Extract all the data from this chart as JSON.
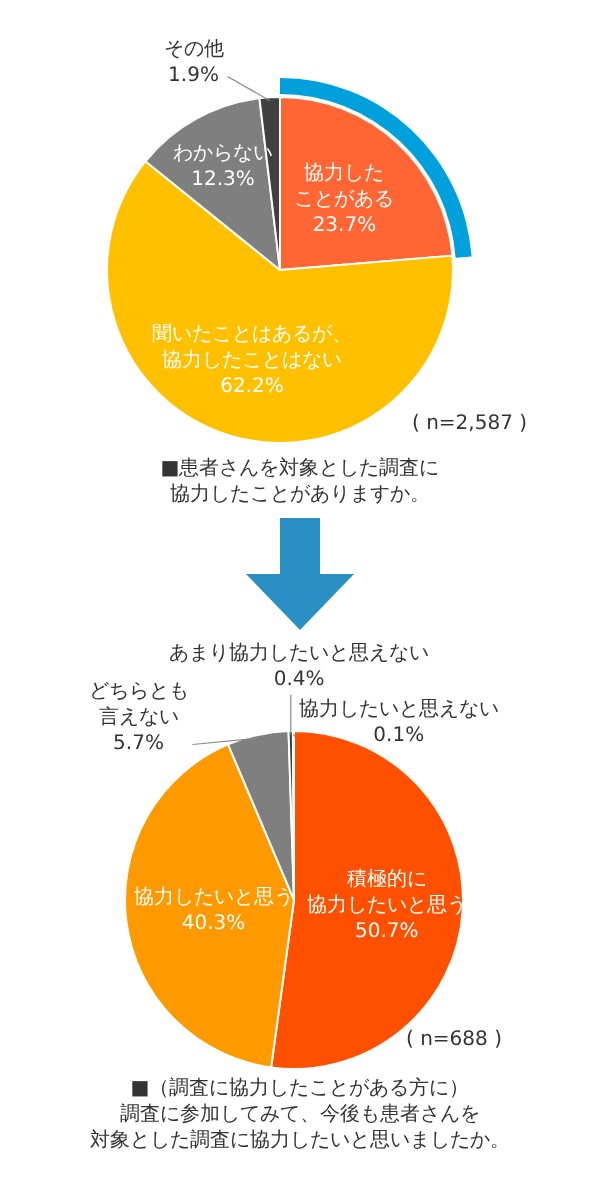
{
  "chart_data": [
    {
      "type": "pie",
      "title": "■患者さんを対象とした調査に協力したことがありますか。",
      "categories": [
        "協力したことがある",
        "聞いたことはあるが、協力したことはない",
        "わからない",
        "その他"
      ],
      "values": [
        23.7,
        62.2,
        12.3,
        1.9
      ],
      "colors": [
        "#ff6633",
        "#ffc000",
        "#7f7f7f",
        "#404040"
      ],
      "value_labels": [
        "23.7%",
        "62.2%",
        "12.3%",
        "1.9%"
      ],
      "annotations": [
        "( n=2,587 )"
      ],
      "legend": false
    },
    {
      "type": "pie",
      "title": "■（調査に協力したことがある方に）調査に参加してみて、今後も患者さんを対象とした調査に協力したいと思いましたか。",
      "categories": [
        "積極的に協力したいと思う",
        "協力したいと思う",
        "どちらとも言えない",
        "あまり協力したいと思えない",
        "協力したいと思えない"
      ],
      "values": [
        50.7,
        40.3,
        5.7,
        0.4,
        0.1
      ],
      "colors": [
        "#ff5000",
        "#ff9900",
        "#7f7f7f",
        "#404040",
        "#262626"
      ],
      "value_labels": [
        "50.7%",
        "40.3%",
        "5.7%",
        "0.4%",
        "0.1%"
      ],
      "annotations": [
        "( n=688 )"
      ],
      "legend": false
    }
  ]
}
